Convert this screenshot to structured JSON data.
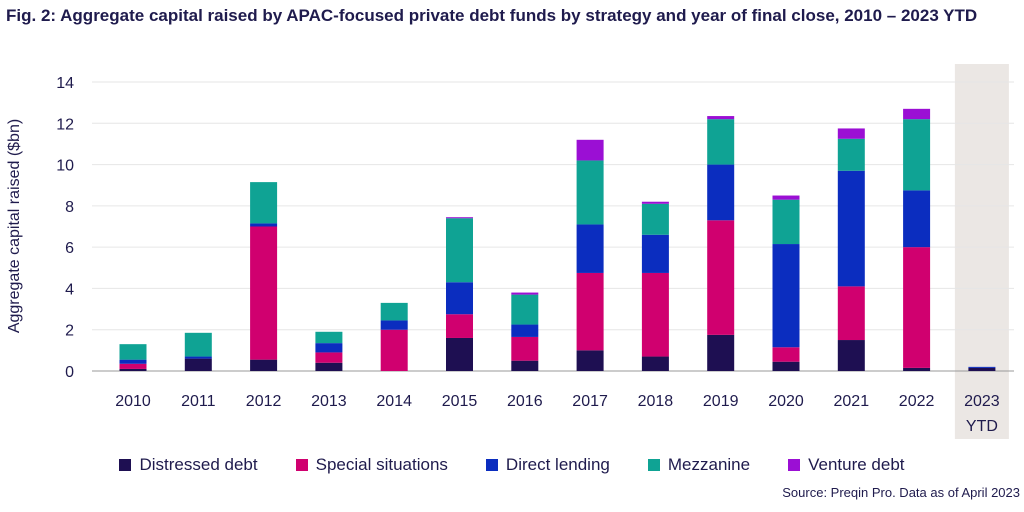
{
  "chart_data": {
    "type": "bar",
    "stacked": true,
    "title": "Fig. 2: Aggregate capital raised by APAC-focused private debt funds by strategy and year of final close, 2010 – 2023 YTD",
    "xlabel": "",
    "ylabel": "Aggregate capital raised ($bn)",
    "ylim": [
      0,
      14
    ],
    "yticks": [
      0,
      2,
      4,
      6,
      8,
      10,
      12,
      14
    ],
    "grid": true,
    "legend_position": "bottom",
    "categories": [
      "2010",
      "2011",
      "2012",
      "2013",
      "2014",
      "2015",
      "2016",
      "2017",
      "2018",
      "2019",
      "2020",
      "2021",
      "2022",
      "2023 YTD"
    ],
    "highlighted_category": "2023 YTD",
    "series": [
      {
        "name": "Distressed debt",
        "color": "#1e0f52",
        "values": [
          0.1,
          0.6,
          0.55,
          0.4,
          0,
          1.6,
          0.5,
          1.0,
          0.7,
          1.75,
          0.45,
          1.5,
          0.15,
          0.15
        ]
      },
      {
        "name": "Special situations",
        "color": "#d0006f",
        "values": [
          0.25,
          0,
          6.45,
          0.5,
          2.0,
          1.15,
          1.15,
          3.75,
          4.05,
          5.55,
          0.7,
          2.6,
          5.85,
          0
        ]
      },
      {
        "name": "Direct lending",
        "color": "#0b2dbf",
        "values": [
          0.2,
          0.1,
          0.15,
          0.45,
          0.45,
          1.55,
          0.6,
          2.35,
          1.85,
          2.7,
          5.0,
          5.6,
          2.75,
          0.05
        ]
      },
      {
        "name": "Mezzanine",
        "color": "#0fa394",
        "values": [
          0.75,
          1.15,
          2.0,
          0.55,
          0.85,
          3.1,
          1.45,
          3.1,
          1.5,
          2.2,
          2.15,
          1.55,
          3.45,
          0
        ]
      },
      {
        "name": "Venture debt",
        "color": "#9b0fd4",
        "values": [
          0,
          0,
          0,
          0,
          0,
          0.05,
          0.1,
          1.0,
          0.1,
          0.15,
          0.2,
          0.5,
          0.5,
          0
        ]
      }
    ],
    "source": "Source: Preqin Pro. Data as of April 2023"
  }
}
